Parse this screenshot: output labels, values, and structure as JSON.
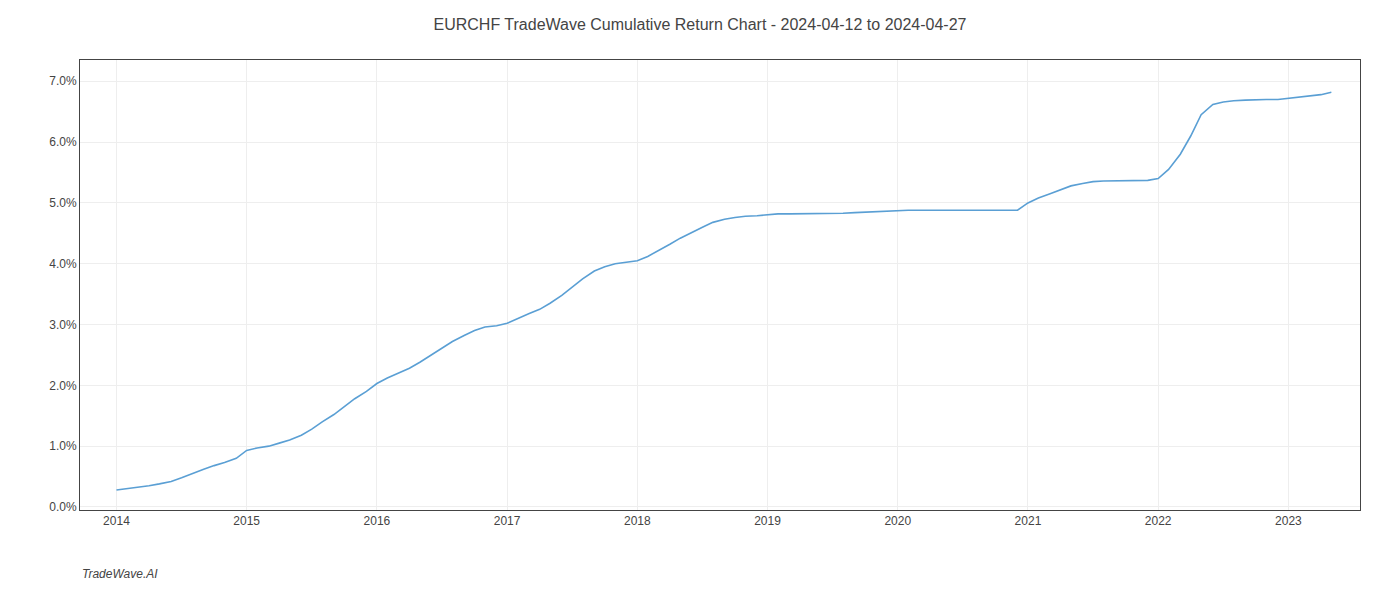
{
  "chart_data": {
    "type": "line",
    "title": "EURCHF TradeWave Cumulative Return Chart - 2024-04-12 to 2024-04-27",
    "annotations": [
      "TradeWave.AI"
    ],
    "color": "#5a9fd4",
    "grid": true,
    "x": [
      2014.0,
      2014.08,
      2014.17,
      2014.25,
      2014.33,
      2014.42,
      2014.5,
      2014.58,
      2014.67,
      2014.75,
      2014.83,
      2014.92,
      2015.0,
      2015.08,
      2015.17,
      2015.25,
      2015.33,
      2015.42,
      2015.5,
      2015.58,
      2015.67,
      2015.75,
      2015.83,
      2015.92,
      2016.0,
      2016.08,
      2016.17,
      2016.25,
      2016.33,
      2016.42,
      2016.5,
      2016.58,
      2016.67,
      2016.75,
      2016.83,
      2016.92,
      2017.0,
      2017.08,
      2017.17,
      2017.25,
      2017.33,
      2017.42,
      2017.5,
      2017.58,
      2017.67,
      2017.75,
      2017.83,
      2017.92,
      2018.0,
      2018.08,
      2018.17,
      2018.25,
      2018.33,
      2018.42,
      2018.5,
      2018.58,
      2018.67,
      2018.75,
      2018.83,
      2018.92,
      2019.0,
      2019.08,
      2019.17,
      2019.25,
      2019.33,
      2019.42,
      2019.5,
      2019.58,
      2019.67,
      2019.75,
      2019.83,
      2019.92,
      2020.0,
      2020.08,
      2020.17,
      2020.25,
      2020.33,
      2020.42,
      2020.5,
      2020.58,
      2020.67,
      2020.75,
      2020.83,
      2020.92,
      2021.0,
      2021.08,
      2021.17,
      2021.25,
      2021.33,
      2021.42,
      2021.5,
      2021.58,
      2021.67,
      2021.75,
      2021.83,
      2021.92,
      2022.0,
      2022.08,
      2022.17,
      2022.25,
      2022.33,
      2022.42,
      2022.5,
      2022.58,
      2022.67,
      2022.75,
      2022.83,
      2022.92,
      2023.0,
      2023.08,
      2023.17,
      2023.25,
      2023.33
    ],
    "values": [
      0.28,
      0.3,
      0.32,
      0.35,
      0.38,
      0.42,
      0.48,
      0.55,
      0.62,
      0.68,
      0.73,
      0.8,
      0.93,
      0.97,
      1.0,
      1.05,
      1.1,
      1.18,
      1.28,
      1.4,
      1.52,
      1.65,
      1.78,
      1.9,
      2.03,
      2.12,
      2.2,
      2.28,
      2.38,
      2.5,
      2.62,
      2.72,
      2.82,
      2.9,
      2.96,
      2.98,
      3.02,
      3.1,
      3.18,
      3.25,
      3.35,
      3.48,
      3.62,
      3.75,
      3.88,
      3.95,
      4.0,
      4.02,
      4.05,
      4.12,
      4.22,
      4.32,
      4.42,
      4.52,
      4.6,
      4.68,
      4.73,
      4.76,
      4.78,
      4.79,
      4.81,
      4.82,
      4.82,
      4.82,
      4.82,
      4.82,
      4.82,
      4.83,
      4.84,
      4.85,
      4.86,
      4.86,
      4.88,
      4.88,
      4.88,
      4.88,
      4.88,
      4.88,
      4.88,
      4.88,
      4.88,
      4.88,
      4.88,
      4.88,
      5.0,
      5.08,
      5.15,
      5.22,
      5.28,
      5.32,
      5.35,
      5.36,
      5.36,
      5.36,
      5.36,
      5.37,
      5.4,
      5.55,
      5.8,
      6.1,
      6.45,
      6.62,
      6.66,
      6.68,
      6.69,
      6.7,
      6.7,
      6.7,
      6.72,
      6.74,
      6.76,
      6.78,
      6.82
    ],
    "xlim": [
      2013.72,
      2023.55
    ],
    "ylim": [
      -0.05,
      7.35
    ],
    "xticks": [
      2014,
      2015,
      2016,
      2017,
      2018,
      2019,
      2020,
      2021,
      2022,
      2023
    ],
    "yticks": [
      {
        "value": 0.0,
        "label": "0.0%"
      },
      {
        "value": 1.0,
        "label": "1.0%"
      },
      {
        "value": 2.0,
        "label": "2.0%"
      },
      {
        "value": 3.0,
        "label": "3.0%"
      },
      {
        "value": 4.0,
        "label": "4.0%"
      },
      {
        "value": 5.0,
        "label": "5.0%"
      },
      {
        "value": 6.0,
        "label": "6.0%"
      },
      {
        "value": 7.0,
        "label": "7.0%"
      }
    ]
  }
}
